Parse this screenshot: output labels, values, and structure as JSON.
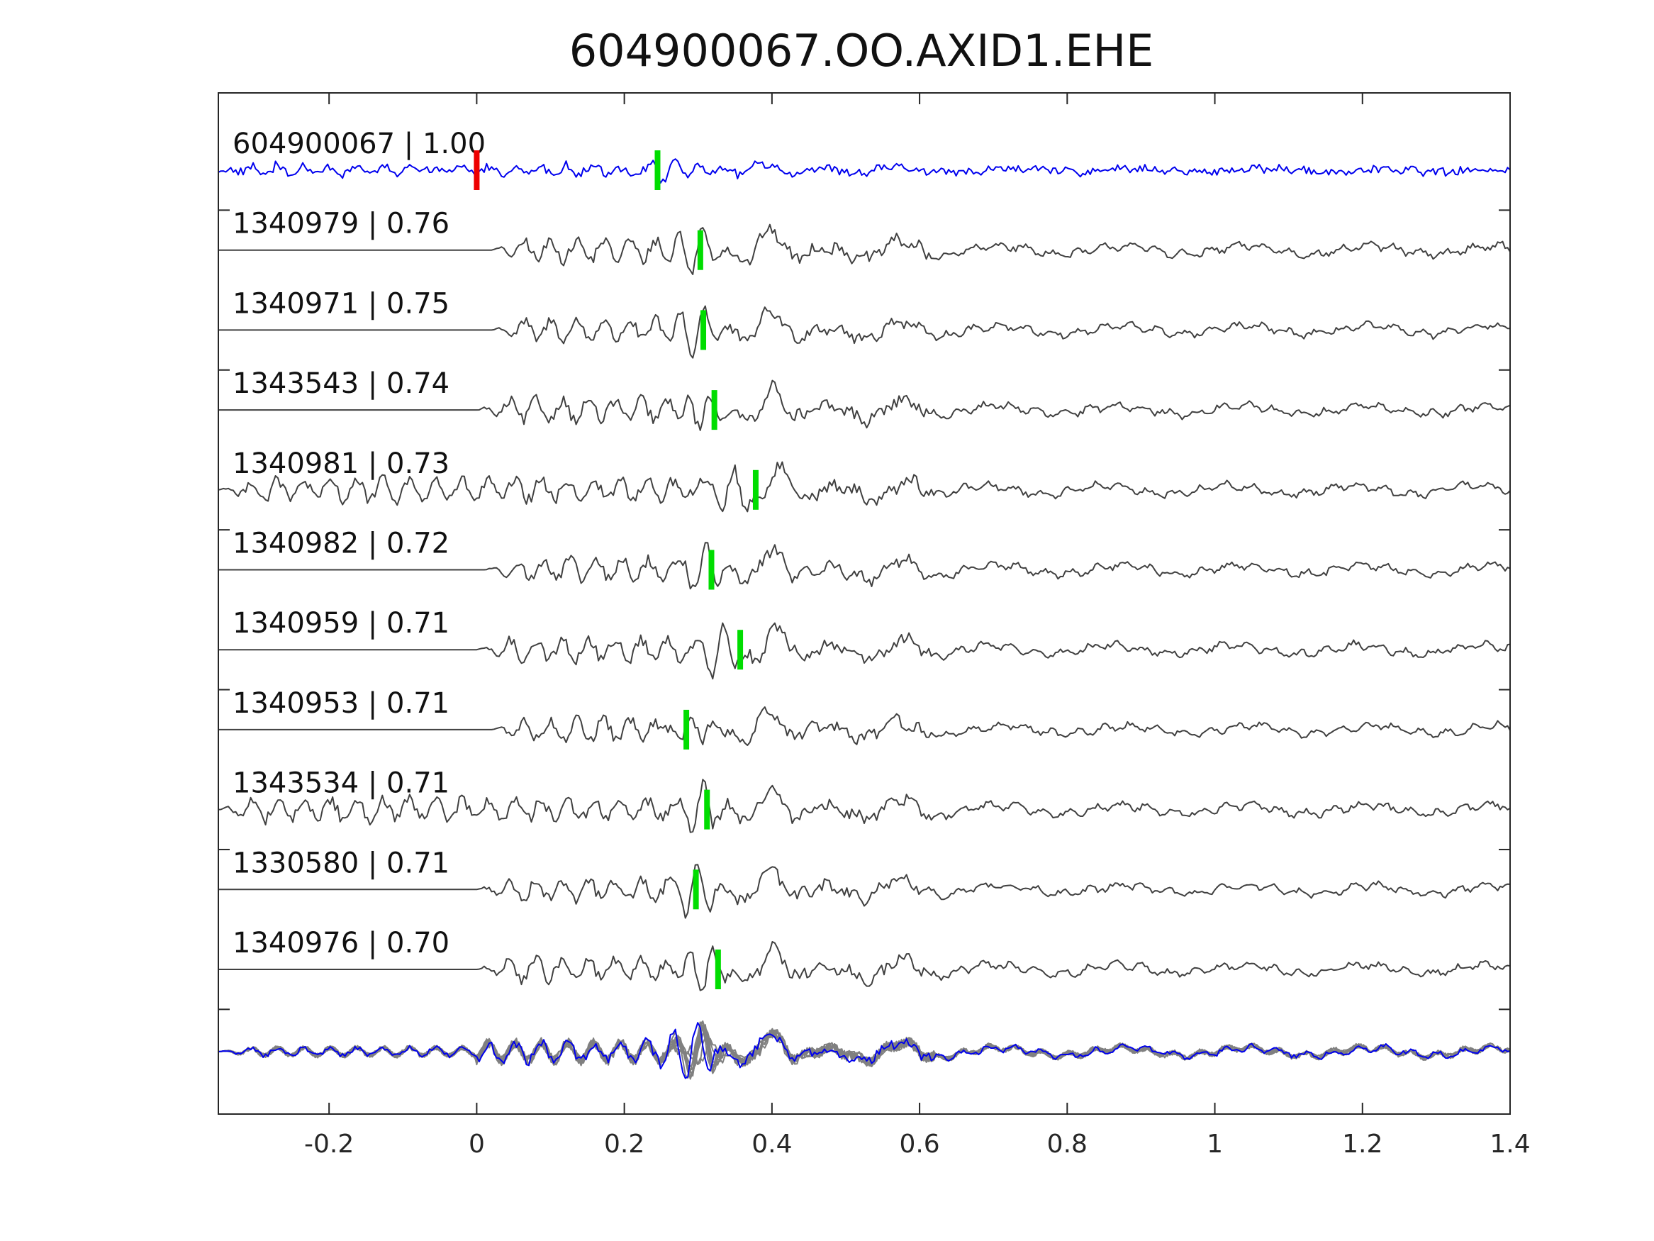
{
  "chart_data": {
    "type": "line",
    "title": "604900067.OO.AXID1.EHE",
    "xlabel": "",
    "ylabel": "",
    "xlim": [
      -0.35,
      1.4
    ],
    "xticks": [
      -0.2,
      0,
      0.2,
      0.4,
      0.6,
      0.8,
      1,
      1.2,
      1.4
    ],
    "xtick_labels": [
      "-0.2",
      "0",
      "0.2",
      "0.4",
      "0.6",
      "0.8",
      "1",
      "1.2",
      "1.4"
    ],
    "grid": false,
    "legend": "none",
    "colors": {
      "master": "#0000ee",
      "trace": "#404040",
      "stack_trace": "#808080",
      "master_marker": "#ee0000",
      "pick_marker": "#00dd00"
    },
    "series": [
      {
        "name": "604900067 | 1.00",
        "label": "604900067 | 1.00",
        "role": "master",
        "pick": 0.245,
        "onset": -0.35,
        "amp": 0.55,
        "master_marker": 0.0
      },
      {
        "name": "1340979 | 0.76",
        "label": "1340979 | 0.76",
        "role": "trace",
        "pick": 0.303,
        "onset": 0.02,
        "amp": 1.0
      },
      {
        "name": "1340971 | 0.75",
        "label": "1340971 | 0.75",
        "role": "trace",
        "pick": 0.307,
        "onset": 0.02,
        "amp": 0.95
      },
      {
        "name": "1343543 | 0.74",
        "label": "1343543 | 0.74",
        "role": "trace",
        "pick": 0.322,
        "onset": 0.0,
        "amp": 1.0
      },
      {
        "name": "1340981 | 0.73",
        "label": "1340981 | 0.73",
        "role": "trace",
        "pick": 0.378,
        "onset": -0.35,
        "amp": 1.0
      },
      {
        "name": "1340982 | 0.72",
        "label": "1340982 | 0.72",
        "role": "trace",
        "pick": 0.318,
        "onset": 0.01,
        "amp": 1.0
      },
      {
        "name": "1340959 | 0.71",
        "label": "1340959 | 0.71",
        "role": "trace",
        "pick": 0.357,
        "onset": 0.0,
        "amp": 1.0
      },
      {
        "name": "1340953 | 0.71",
        "label": "1340953 | 0.71",
        "role": "trace",
        "pick": 0.284,
        "onset": 0.02,
        "amp": 0.95
      },
      {
        "name": "1343534 | 0.71",
        "label": "1343534 | 0.71",
        "role": "trace",
        "pick": 0.312,
        "onset": -0.35,
        "amp": 1.0
      },
      {
        "name": "1330580 | 0.71",
        "label": "1330580 | 0.71",
        "role": "trace",
        "pick": 0.297,
        "onset": 0.0,
        "amp": 0.95
      },
      {
        "name": "1340976 | 0.70",
        "label": "1340976 | 0.70",
        "role": "trace",
        "pick": 0.327,
        "onset": 0.0,
        "amp": 1.0
      }
    ],
    "stack": {
      "description": "",
      "count": 11
    }
  }
}
